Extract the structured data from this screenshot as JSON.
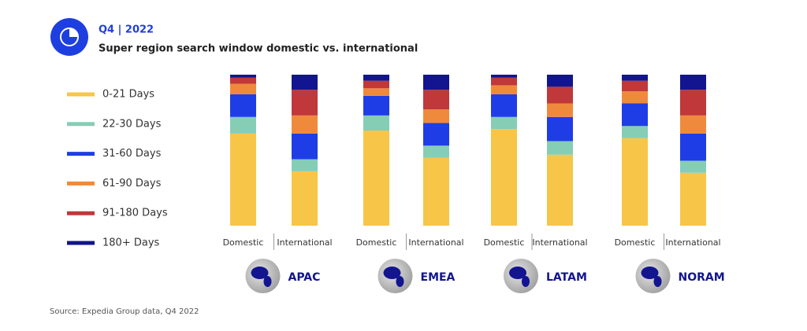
{
  "chart_data": {
    "type": "stacked_bar",
    "header": "Q4 | 2022",
    "title": "Super region search window domestic vs. international",
    "source": "Source: Expedia Group data, Q4 2022",
    "groups": [
      "APAC",
      "EMEA",
      "LATAM",
      "NORAM"
    ],
    "categories": [
      "Domestic",
      "International",
      "Domestic",
      "International",
      "Domestic",
      "International",
      "Domestic",
      "International"
    ],
    "ylim": [
      0,
      100
    ],
    "series": [
      {
        "name": "0-21 Days",
        "color": "#f7c548",
        "values": [
          61,
          36,
          63,
          45,
          64,
          47,
          58,
          35
        ]
      },
      {
        "name": "22-30 Days",
        "color": "#86cdb6",
        "values": [
          11,
          8,
          10,
          8,
          8,
          9,
          8,
          8
        ]
      },
      {
        "name": "31-60 Days",
        "color": "#1f3de6",
        "values": [
          15,
          17,
          13,
          15,
          15,
          16,
          15,
          18
        ]
      },
      {
        "name": "61-90 Days",
        "color": "#ef8a3c",
        "values": [
          7,
          12,
          5,
          9,
          6,
          9,
          8,
          12
        ]
      },
      {
        "name": "91-180 Days",
        "color": "#c0383a",
        "values": [
          4,
          17,
          5,
          13,
          5,
          11,
          7,
          17
        ]
      },
      {
        "name": "180+ Days",
        "color": "#12158f",
        "values": [
          2,
          10,
          4,
          10,
          2,
          8,
          4,
          10
        ]
      }
    ]
  }
}
